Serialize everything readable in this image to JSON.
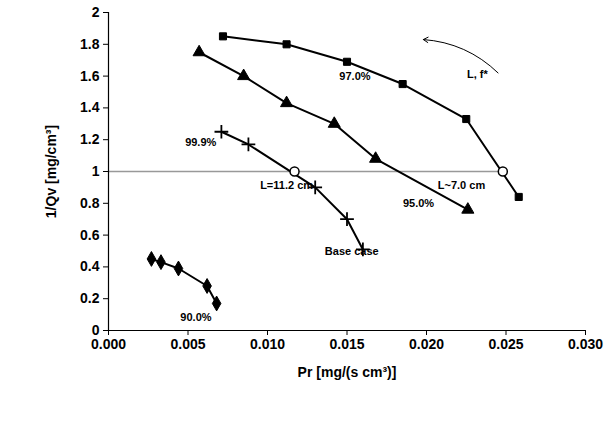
{
  "chart_data": {
    "type": "line",
    "x_label": "Pr [mg/(s cm³)]",
    "y_label": "1/Qv [mg/cm³]",
    "xlim": [
      0,
      0.03
    ],
    "ylim": [
      0,
      2
    ],
    "xticks": [
      {
        "value": 0,
        "label": "0.000"
      },
      {
        "value": 0.005,
        "label": "0.005"
      },
      {
        "value": 0.01,
        "label": "0.010"
      },
      {
        "value": 0.015,
        "label": "0.015"
      },
      {
        "value": 0.02,
        "label": "0.020"
      },
      {
        "value": 0.025,
        "label": "0.025"
      },
      {
        "value": 0.03,
        "label": "0.030"
      }
    ],
    "yticks": [
      0,
      0.2,
      0.4,
      0.6,
      0.8,
      1,
      1.2,
      1.4,
      1.6,
      1.8,
      2
    ],
    "grid": false,
    "series": [
      {
        "name": "97.0%",
        "color": "#000000",
        "marker": "square",
        "line_style": "solid",
        "x": [
          0.0072,
          0.0112,
          0.015,
          0.0185,
          0.0225,
          0.0258
        ],
        "values": [
          1.85,
          1.8,
          1.69,
          1.55,
          1.33,
          0.84
        ]
      },
      {
        "name": "95.0%",
        "color": "#000000",
        "marker": "triangle",
        "line_style": "solid",
        "x": [
          0.0057,
          0.0085,
          0.0112,
          0.0142,
          0.0168,
          0.0226
        ],
        "values": [
          1.75,
          1.6,
          1.43,
          1.3,
          1.08,
          0.76
        ]
      },
      {
        "name": "99.9%",
        "color": "#000000",
        "marker": "plus",
        "line_style": "solid",
        "x": [
          0.0071,
          0.0088,
          0.013,
          0.015,
          0.016
        ],
        "values": [
          1.25,
          1.17,
          0.9,
          0.7,
          0.51
        ]
      },
      {
        "name": "90.0%",
        "color": "#000000",
        "marker": "diamond",
        "line_style": "solid",
        "x": [
          0.0027,
          0.0033,
          0.0044,
          0.0062,
          0.0068
        ],
        "values": [
          0.45,
          0.43,
          0.39,
          0.28,
          0.17
        ]
      }
    ],
    "reference_line": {
      "y": 1,
      "x": [
        0,
        0.025
      ],
      "color": "#999999"
    },
    "reference_points": [
      {
        "x": 0.0117,
        "y": 1.0
      },
      {
        "x": 0.0248,
        "y": 1.0
      }
    ],
    "arrow": {
      "x1": 0.0245,
      "y1": 1.62,
      "x2": 0.0198,
      "y2": 1.83
    },
    "annotations": [
      {
        "text": "97.0%",
        "x": 0.0155,
        "y": 1.6
      },
      {
        "text": "95.0%",
        "x": 0.0195,
        "y": 0.8
      },
      {
        "text": "99.9%",
        "x": 0.0058,
        "y": 1.18
      },
      {
        "text": "Base case",
        "x": 0.0153,
        "y": 0.5
      },
      {
        "text": "90.0%",
        "x": 0.0055,
        "y": 0.08
      },
      {
        "text": "L=11.2 cm",
        "x": 0.0112,
        "y": 0.91
      },
      {
        "text": "L~7.0 cm",
        "x": 0.0222,
        "y": 0.91
      },
      {
        "text": "L, f*",
        "x": 0.0232,
        "y": 1.61
      }
    ]
  }
}
